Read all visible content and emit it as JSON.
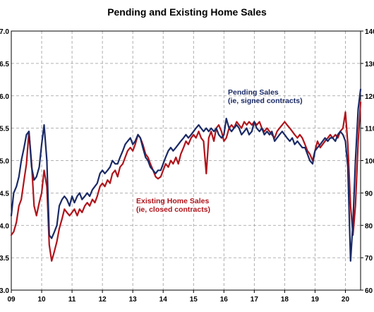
{
  "chart_data": {
    "type": "line",
    "title": "Pending and Existing Home Sales",
    "x_ticks": [
      "09",
      "10",
      "11",
      "12",
      "13",
      "14",
      "15",
      "16",
      "17",
      "18",
      "19",
      "20"
    ],
    "x_range": [
      2009.0,
      2020.5
    ],
    "y_left": {
      "range": [
        3.0,
        7.0
      ],
      "ticks": [
        "3.0",
        "3.5",
        "4.0",
        "4.5",
        "5.0",
        "5.5",
        "6.0",
        "6.5",
        "7.0"
      ]
    },
    "y_right": {
      "range": [
        60,
        140
      ],
      "ticks": [
        "60",
        "70",
        "80",
        "90",
        "100",
        "110",
        "120",
        "130",
        "140"
      ]
    },
    "grid": true,
    "annotations": [
      {
        "series": "pending",
        "lines": [
          "Pending Sales",
          "(ie, signed contracts)"
        ]
      },
      {
        "series": "existing",
        "lines": [
          "Existing Home Sales",
          "(ie, closed contracts)"
        ]
      }
    ],
    "series": [
      {
        "id": "existing",
        "axis": "left",
        "color": "#b0141b",
        "points": [
          [
            2009.0,
            3.85
          ],
          [
            2009.08,
            3.9
          ],
          [
            2009.17,
            4.05
          ],
          [
            2009.25,
            4.3
          ],
          [
            2009.33,
            4.4
          ],
          [
            2009.42,
            4.7
          ],
          [
            2009.5,
            4.95
          ],
          [
            2009.58,
            5.45
          ],
          [
            2009.67,
            4.95
          ],
          [
            2009.75,
            4.3
          ],
          [
            2009.83,
            4.15
          ],
          [
            2009.92,
            4.35
          ],
          [
            2010.0,
            4.5
          ],
          [
            2010.08,
            4.85
          ],
          [
            2010.17,
            4.6
          ],
          [
            2010.25,
            3.7
          ],
          [
            2010.33,
            3.45
          ],
          [
            2010.42,
            3.6
          ],
          [
            2010.5,
            3.75
          ],
          [
            2010.58,
            3.95
          ],
          [
            2010.67,
            4.1
          ],
          [
            2010.75,
            4.25
          ],
          [
            2010.83,
            4.2
          ],
          [
            2010.92,
            4.15
          ],
          [
            2011.0,
            4.2
          ],
          [
            2011.08,
            4.25
          ],
          [
            2011.17,
            4.15
          ],
          [
            2011.25,
            4.25
          ],
          [
            2011.33,
            4.2
          ],
          [
            2011.42,
            4.3
          ],
          [
            2011.5,
            4.35
          ],
          [
            2011.58,
            4.3
          ],
          [
            2011.67,
            4.4
          ],
          [
            2011.75,
            4.35
          ],
          [
            2011.83,
            4.45
          ],
          [
            2011.92,
            4.6
          ],
          [
            2012.0,
            4.65
          ],
          [
            2012.08,
            4.6
          ],
          [
            2012.17,
            4.7
          ],
          [
            2012.25,
            4.65
          ],
          [
            2012.33,
            4.8
          ],
          [
            2012.42,
            4.85
          ],
          [
            2012.5,
            4.75
          ],
          [
            2012.58,
            4.9
          ],
          [
            2012.67,
            4.95
          ],
          [
            2012.75,
            5.05
          ],
          [
            2012.83,
            5.15
          ],
          [
            2012.92,
            5.2
          ],
          [
            2013.0,
            5.15
          ],
          [
            2013.08,
            5.25
          ],
          [
            2013.17,
            5.4
          ],
          [
            2013.25,
            5.35
          ],
          [
            2013.33,
            5.25
          ],
          [
            2013.42,
            5.1
          ],
          [
            2013.5,
            5.05
          ],
          [
            2013.58,
            4.95
          ],
          [
            2013.67,
            4.85
          ],
          [
            2013.75,
            4.75
          ],
          [
            2013.83,
            4.72
          ],
          [
            2013.92,
            4.75
          ],
          [
            2014.0,
            4.85
          ],
          [
            2014.08,
            4.95
          ],
          [
            2014.17,
            4.9
          ],
          [
            2014.25,
            5.0
          ],
          [
            2014.33,
            4.95
          ],
          [
            2014.42,
            5.05
          ],
          [
            2014.5,
            4.95
          ],
          [
            2014.58,
            5.1
          ],
          [
            2014.67,
            5.2
          ],
          [
            2014.75,
            5.3
          ],
          [
            2014.83,
            5.25
          ],
          [
            2014.92,
            5.35
          ],
          [
            2015.0,
            5.4
          ],
          [
            2015.08,
            5.35
          ],
          [
            2015.17,
            5.45
          ],
          [
            2015.25,
            5.35
          ],
          [
            2015.33,
            5.3
          ],
          [
            2015.42,
            4.8
          ],
          [
            2015.5,
            5.35
          ],
          [
            2015.58,
            5.45
          ],
          [
            2015.67,
            5.3
          ],
          [
            2015.75,
            5.5
          ],
          [
            2015.83,
            5.55
          ],
          [
            2015.92,
            5.45
          ],
          [
            2016.0,
            5.3
          ],
          [
            2016.08,
            5.35
          ],
          [
            2016.17,
            5.5
          ],
          [
            2016.25,
            5.55
          ],
          [
            2016.33,
            5.5
          ],
          [
            2016.42,
            5.6
          ],
          [
            2016.5,
            5.55
          ],
          [
            2016.58,
            5.5
          ],
          [
            2016.67,
            5.6
          ],
          [
            2016.75,
            5.55
          ],
          [
            2016.83,
            5.6
          ],
          [
            2016.92,
            5.55
          ],
          [
            2017.0,
            5.6
          ],
          [
            2017.08,
            5.55
          ],
          [
            2017.17,
            5.6
          ],
          [
            2017.25,
            5.5
          ],
          [
            2017.33,
            5.45
          ],
          [
            2017.42,
            5.5
          ],
          [
            2017.5,
            5.45
          ],
          [
            2017.58,
            5.4
          ],
          [
            2017.67,
            5.35
          ],
          [
            2017.75,
            5.45
          ],
          [
            2017.83,
            5.5
          ],
          [
            2017.92,
            5.55
          ],
          [
            2018.0,
            5.6
          ],
          [
            2018.08,
            5.55
          ],
          [
            2018.17,
            5.5
          ],
          [
            2018.25,
            5.45
          ],
          [
            2018.33,
            5.4
          ],
          [
            2018.42,
            5.35
          ],
          [
            2018.5,
            5.4
          ],
          [
            2018.58,
            5.35
          ],
          [
            2018.67,
            5.25
          ],
          [
            2018.75,
            5.15
          ],
          [
            2018.83,
            5.1
          ],
          [
            2018.92,
            5.0
          ],
          [
            2019.0,
            5.15
          ],
          [
            2019.08,
            5.3
          ],
          [
            2019.17,
            5.2
          ],
          [
            2019.25,
            5.25
          ],
          [
            2019.33,
            5.3
          ],
          [
            2019.42,
            5.35
          ],
          [
            2019.5,
            5.4
          ],
          [
            2019.58,
            5.35
          ],
          [
            2019.67,
            5.4
          ],
          [
            2019.75,
            5.35
          ],
          [
            2019.83,
            5.45
          ],
          [
            2019.92,
            5.5
          ],
          [
            2020.0,
            5.75
          ],
          [
            2020.08,
            5.25
          ],
          [
            2020.17,
            4.3
          ],
          [
            2020.25,
            3.85
          ],
          [
            2020.33,
            4.3
          ],
          [
            2020.42,
            5.3
          ],
          [
            2020.5,
            5.9
          ]
        ]
      },
      {
        "id": "pending",
        "axis": "right",
        "color": "#1a2a66",
        "points": [
          [
            2009.0,
            83
          ],
          [
            2009.08,
            90
          ],
          [
            2009.17,
            92
          ],
          [
            2009.25,
            95
          ],
          [
            2009.33,
            100
          ],
          [
            2009.42,
            104
          ],
          [
            2009.5,
            108
          ],
          [
            2009.58,
            109
          ],
          [
            2009.67,
            98
          ],
          [
            2009.75,
            94
          ],
          [
            2009.83,
            95
          ],
          [
            2009.92,
            98
          ],
          [
            2010.0,
            105
          ],
          [
            2010.08,
            111
          ],
          [
            2010.17,
            100
          ],
          [
            2010.25,
            77
          ],
          [
            2010.33,
            76
          ],
          [
            2010.42,
            78
          ],
          [
            2010.5,
            80
          ],
          [
            2010.58,
            86
          ],
          [
            2010.67,
            88
          ],
          [
            2010.75,
            89
          ],
          [
            2010.83,
            88
          ],
          [
            2010.92,
            86
          ],
          [
            2011.0,
            89
          ],
          [
            2011.08,
            87
          ],
          [
            2011.17,
            89
          ],
          [
            2011.25,
            90
          ],
          [
            2011.33,
            88
          ],
          [
            2011.42,
            89
          ],
          [
            2011.5,
            90
          ],
          [
            2011.58,
            89
          ],
          [
            2011.67,
            91
          ],
          [
            2011.75,
            92
          ],
          [
            2011.83,
            93
          ],
          [
            2011.92,
            96
          ],
          [
            2012.0,
            97
          ],
          [
            2012.08,
            96
          ],
          [
            2012.17,
            97
          ],
          [
            2012.25,
            98
          ],
          [
            2012.33,
            100
          ],
          [
            2012.42,
            99
          ],
          [
            2012.5,
            99
          ],
          [
            2012.58,
            101
          ],
          [
            2012.67,
            103
          ],
          [
            2012.75,
            105
          ],
          [
            2012.83,
            106
          ],
          [
            2012.92,
            107
          ],
          [
            2013.0,
            105
          ],
          [
            2013.08,
            106
          ],
          [
            2013.17,
            108
          ],
          [
            2013.25,
            107
          ],
          [
            2013.33,
            104
          ],
          [
            2013.42,
            101
          ],
          [
            2013.5,
            100
          ],
          [
            2013.58,
            98
          ],
          [
            2013.67,
            97
          ],
          [
            2013.75,
            96
          ],
          [
            2013.83,
            97
          ],
          [
            2013.92,
            97
          ],
          [
            2014.0,
            99
          ],
          [
            2014.08,
            101
          ],
          [
            2014.17,
            103
          ],
          [
            2014.25,
            104
          ],
          [
            2014.33,
            103
          ],
          [
            2014.42,
            104
          ],
          [
            2014.5,
            105
          ],
          [
            2014.58,
            106
          ],
          [
            2014.67,
            107
          ],
          [
            2014.75,
            108
          ],
          [
            2014.83,
            107
          ],
          [
            2014.92,
            108
          ],
          [
            2015.0,
            109
          ],
          [
            2015.08,
            110
          ],
          [
            2015.17,
            111
          ],
          [
            2015.25,
            110
          ],
          [
            2015.33,
            109
          ],
          [
            2015.42,
            110
          ],
          [
            2015.5,
            109
          ],
          [
            2015.58,
            110
          ],
          [
            2015.67,
            109
          ],
          [
            2015.75,
            110
          ],
          [
            2015.83,
            108
          ],
          [
            2015.92,
            107
          ],
          [
            2016.0,
            108
          ],
          [
            2016.08,
            113
          ],
          [
            2016.17,
            110
          ],
          [
            2016.25,
            109
          ],
          [
            2016.33,
            110
          ],
          [
            2016.42,
            111
          ],
          [
            2016.5,
            110
          ],
          [
            2016.58,
            108
          ],
          [
            2016.67,
            109
          ],
          [
            2016.75,
            110
          ],
          [
            2016.83,
            108
          ],
          [
            2016.92,
            109
          ],
          [
            2017.0,
            112
          ],
          [
            2017.08,
            110
          ],
          [
            2017.17,
            109
          ],
          [
            2017.25,
            110
          ],
          [
            2017.33,
            108
          ],
          [
            2017.42,
            109
          ],
          [
            2017.5,
            108
          ],
          [
            2017.58,
            109
          ],
          [
            2017.67,
            106
          ],
          [
            2017.75,
            107
          ],
          [
            2017.83,
            108
          ],
          [
            2017.92,
            109
          ],
          [
            2018.0,
            108
          ],
          [
            2018.08,
            107
          ],
          [
            2018.17,
            106
          ],
          [
            2018.25,
            107
          ],
          [
            2018.33,
            105
          ],
          [
            2018.42,
            106
          ],
          [
            2018.5,
            105
          ],
          [
            2018.58,
            104
          ],
          [
            2018.67,
            104
          ],
          [
            2018.75,
            102
          ],
          [
            2018.83,
            100
          ],
          [
            2018.92,
            99
          ],
          [
            2019.0,
            103
          ],
          [
            2019.08,
            104
          ],
          [
            2019.17,
            105
          ],
          [
            2019.25,
            106
          ],
          [
            2019.33,
            107
          ],
          [
            2019.42,
            106
          ],
          [
            2019.5,
            107
          ],
          [
            2019.58,
            107
          ],
          [
            2019.67,
            106
          ],
          [
            2019.75,
            108
          ],
          [
            2019.83,
            109
          ],
          [
            2019.92,
            108
          ],
          [
            2020.0,
            106
          ],
          [
            2020.08,
            98
          ],
          [
            2020.17,
            69
          ],
          [
            2020.25,
            81
          ],
          [
            2020.33,
            100
          ],
          [
            2020.42,
            116
          ],
          [
            2020.5,
            122
          ]
        ]
      }
    ]
  }
}
